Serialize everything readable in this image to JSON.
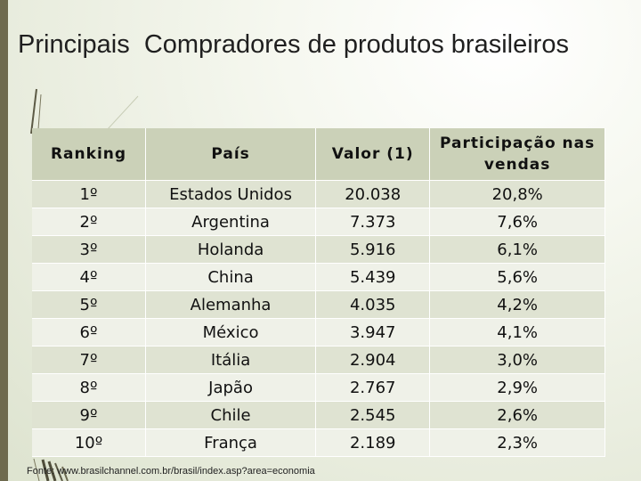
{
  "title": "Principais  Compradores de produtos brasileiros",
  "table": {
    "headers": [
      "Ranking",
      "País",
      "Valor (1)",
      "Participação nas vendas"
    ],
    "rows": [
      {
        "rank": "1º",
        "country": "Estados Unidos",
        "value": "20.038",
        "share": "20,8%"
      },
      {
        "rank": "2º",
        "country": "Argentina",
        "value": "7.373",
        "share": "7,6%"
      },
      {
        "rank": "3º",
        "country": "Holanda",
        "value": "5.916",
        "share": "6,1%"
      },
      {
        "rank": "4º",
        "country": "China",
        "value": "5.439",
        "share": "5,6%"
      },
      {
        "rank": "5º",
        "country": "Alemanha",
        "value": "4.035",
        "share": "4,2%"
      },
      {
        "rank": "6º",
        "country": "México",
        "value": "3.947",
        "share": "4,1%"
      },
      {
        "rank": "7º",
        "country": "Itália",
        "value": "2.904",
        "share": "3,0%"
      },
      {
        "rank": "8º",
        "country": "Japão",
        "value": "2.767",
        "share": "2,9%"
      },
      {
        "rank": "9º",
        "country": "Chile",
        "value": "2.545",
        "share": "2,6%"
      },
      {
        "rank": "10º",
        "country": "França",
        "value": "2.189",
        "share": "2,3%"
      }
    ]
  },
  "footer": "Fonte: www.brasilchannel.com.br/brasil/index.asp?area=economia",
  "colors": {
    "background": "#eef1e6",
    "header_fill": "#cbd1b8",
    "row_odd": "#dfe3d2",
    "row_even": "#eff1e8",
    "left_bar": "#6e6a4e"
  }
}
